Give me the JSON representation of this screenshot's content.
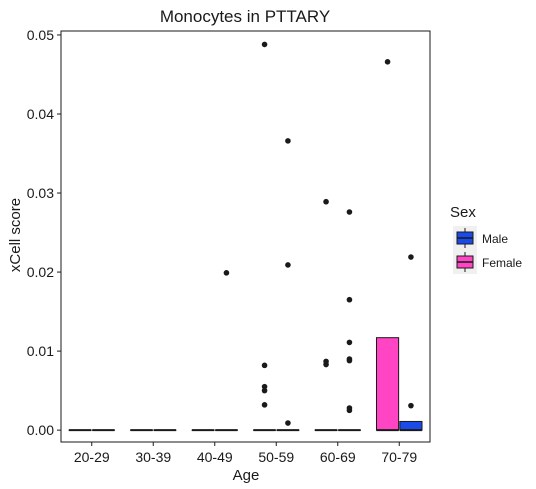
{
  "chart_data": {
    "type": "boxplot",
    "title": "Monocytes in PTTARY",
    "xlabel": "Age",
    "ylabel": "xCell score",
    "categories": [
      "20-29",
      "30-39",
      "40-49",
      "50-59",
      "60-69",
      "70-79"
    ],
    "ylim": [
      -0.0015,
      0.0505
    ],
    "yticks": [
      0,
      0.01,
      0.02,
      0.03,
      0.04,
      0.05
    ],
    "ytick_labels": [
      "0.00",
      "0.01",
      "0.02",
      "0.03",
      "0.04",
      "0.05"
    ],
    "grid": false,
    "legend": {
      "title": "Sex",
      "position": "right",
      "entries": [
        "Male",
        "Female"
      ]
    },
    "colors": {
      "Female": "#ff44c4",
      "Male": "#1a4be8"
    },
    "series": [
      {
        "name": "Female",
        "boxes": [
          {
            "category": "20-29",
            "min": 0,
            "q1": 0,
            "median": 0,
            "q3": 0,
            "max": 0,
            "outliers": []
          },
          {
            "category": "30-39",
            "min": 0,
            "q1": 0,
            "median": 0,
            "q3": 0,
            "max": 0,
            "outliers": []
          },
          {
            "category": "40-49",
            "min": 0,
            "q1": 0,
            "median": 0,
            "q3": 0,
            "max": 0,
            "outliers": []
          },
          {
            "category": "50-59",
            "min": 0,
            "q1": 0,
            "median": 0,
            "q3": 0,
            "max": 0,
            "outliers": [
              0.0488,
              0.0082,
              0.0055,
              0.005,
              0.0032
            ]
          },
          {
            "category": "60-69",
            "min": 0,
            "q1": 0,
            "median": 0,
            "q3": 0,
            "max": 0,
            "outliers": [
              0.0289,
              0.0087,
              0.0083
            ]
          },
          {
            "category": "70-79",
            "min": 0,
            "q1": 0,
            "median": 0,
            "q3": 0.0117,
            "max": 0.0117,
            "outliers": [
              0.0466
            ]
          }
        ]
      },
      {
        "name": "Male",
        "boxes": [
          {
            "category": "20-29",
            "min": 0,
            "q1": 0,
            "median": 0,
            "q3": 0,
            "max": 0,
            "outliers": []
          },
          {
            "category": "30-39",
            "min": 0,
            "q1": 0,
            "median": 0,
            "q3": 0,
            "max": 0,
            "outliers": []
          },
          {
            "category": "40-49",
            "min": 0,
            "q1": 0,
            "median": 0,
            "q3": 0,
            "max": 0,
            "outliers": [
              0.0199
            ]
          },
          {
            "category": "50-59",
            "min": 0,
            "q1": 0,
            "median": 0,
            "q3": 0,
            "max": 0,
            "outliers": [
              0.0366,
              0.0209,
              0.0009
            ]
          },
          {
            "category": "60-69",
            "min": 0,
            "q1": 0,
            "median": 0,
            "q3": 0,
            "max": 0,
            "outliers": [
              0.0276,
              0.0165,
              0.0111,
              0.009,
              0.0088,
              0.0028,
              0.0025
            ]
          },
          {
            "category": "70-79",
            "min": 0,
            "q1": 0,
            "median": 0,
            "q3": 0.0011,
            "max": 0.0011,
            "outliers": [
              0.0219,
              0.0031
            ]
          }
        ]
      }
    ]
  }
}
